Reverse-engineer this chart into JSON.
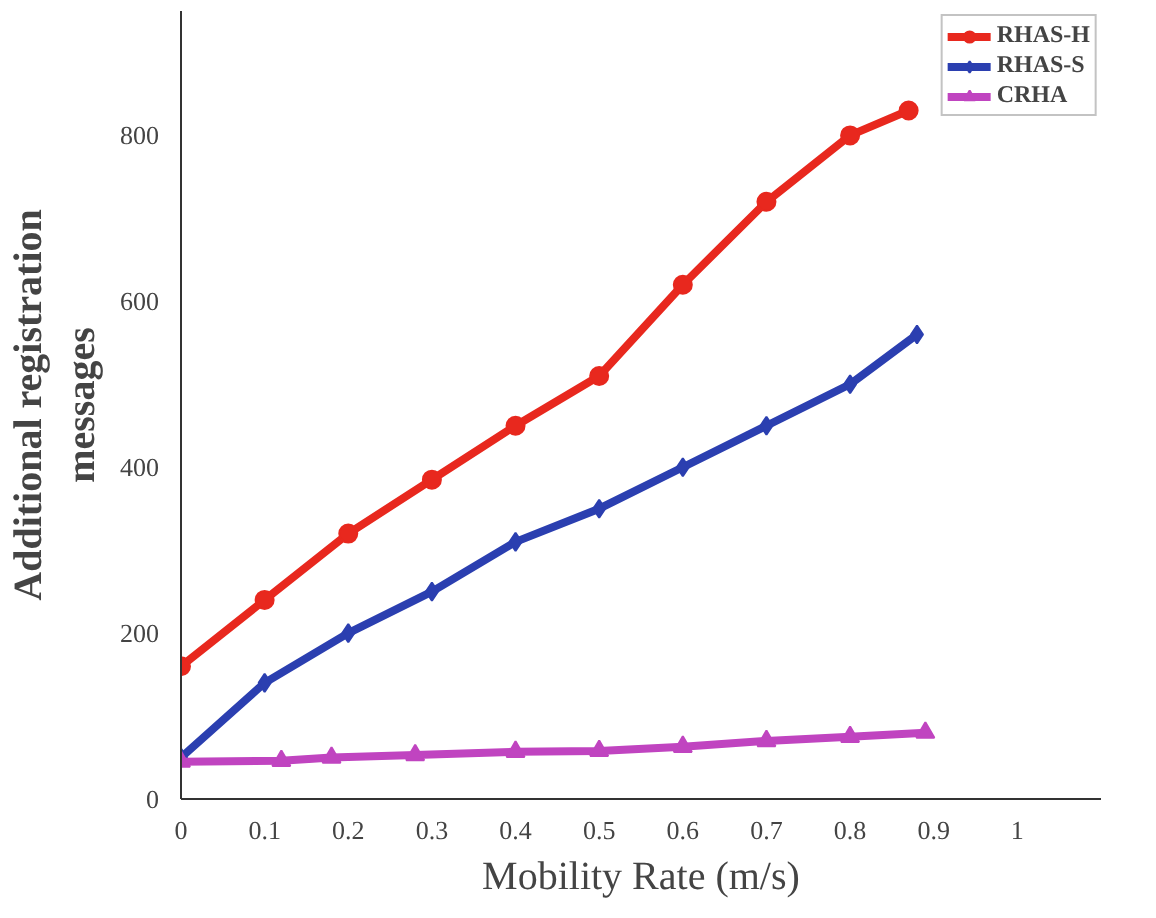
{
  "chart_data": {
    "type": "line",
    "xlabel": "Mobility Rate (m/s)",
    "ylabel": "Additional registration\nmessages",
    "xlim": [
      0,
      1.1
    ],
    "ylim": [
      0,
      950
    ],
    "xticks": [
      0,
      0.1,
      0.2,
      0.3,
      0.4,
      0.5,
      0.6,
      0.7,
      0.8,
      0.9,
      1
    ],
    "yticks": [
      0,
      200,
      400,
      600,
      800
    ],
    "grid": false,
    "legend": "top right",
    "line_style": "solid",
    "series": [
      {
        "name": "RHAS-H",
        "color": "#e8281e",
        "marker": "circle",
        "x": [
          0,
          0.1,
          0.2,
          0.3,
          0.4,
          0.5,
          0.6,
          0.7,
          0.8,
          0.87
        ],
        "values": [
          160,
          240,
          320,
          385,
          450,
          510,
          620,
          720,
          800,
          830
        ]
      },
      {
        "name": "RHAS-S",
        "color": "#2b3fb0",
        "marker": "diamond",
        "x": [
          0,
          0.1,
          0.2,
          0.3,
          0.4,
          0.5,
          0.6,
          0.7,
          0.8,
          0.88
        ],
        "values": [
          50,
          140,
          200,
          250,
          310,
          350,
          400,
          450,
          500,
          560
        ]
      },
      {
        "name": "CRHA",
        "color": "#c044c0",
        "marker": "triangle",
        "x": [
          0,
          0.12,
          0.18,
          0.28,
          0.4,
          0.5,
          0.6,
          0.7,
          0.8,
          0.89
        ],
        "values": [
          45,
          46,
          50,
          53,
          57,
          58,
          63,
          70,
          75,
          80
        ]
      }
    ]
  }
}
